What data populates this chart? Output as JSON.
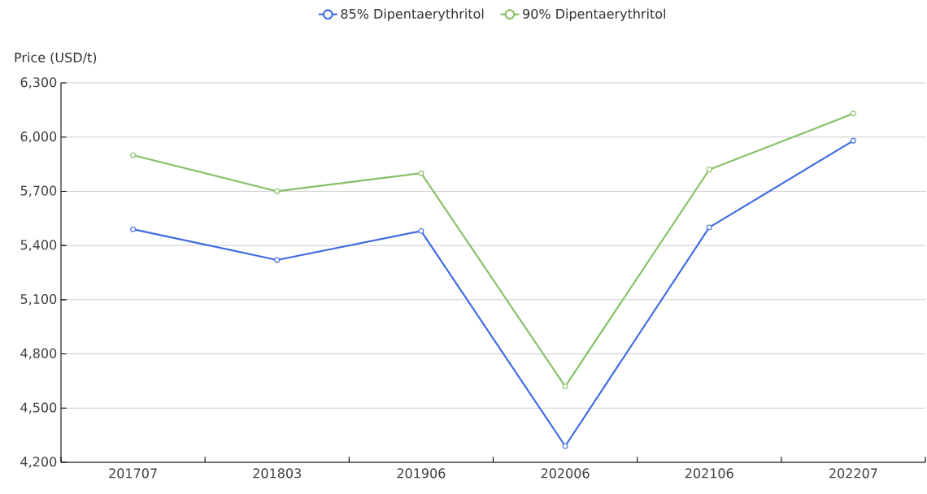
{
  "chart_data": {
    "type": "line",
    "ylabel": "Price (USD/t)",
    "categories": [
      "201707",
      "201803",
      "201906",
      "202006",
      "202106",
      "202207"
    ],
    "series": [
      {
        "name": "85% Dipentaerythritol",
        "color": "#3f6ae0",
        "values": [
          5490,
          5320,
          5480,
          4290,
          5500,
          5980
        ]
      },
      {
        "name": "90% Dipentaerythritol",
        "color": "#86bf66",
        "values": [
          5900,
          5700,
          5800,
          4620,
          5820,
          6130
        ]
      }
    ],
    "ylim": [
      4200,
      6300
    ],
    "yticks": [
      {
        "value": 4200,
        "label": "4,200"
      },
      {
        "value": 4500,
        "label": "4,500"
      },
      {
        "value": 4800,
        "label": "4,800"
      },
      {
        "value": 5100,
        "label": "5,100"
      },
      {
        "value": 5400,
        "label": "5,400"
      },
      {
        "value": 5700,
        "label": "5,700"
      },
      {
        "value": 6000,
        "label": "6,000"
      },
      {
        "value": 6300,
        "label": "6,300"
      }
    ],
    "grid": "y",
    "legend": "top",
    "marker": "circle",
    "line_style": "solid"
  }
}
